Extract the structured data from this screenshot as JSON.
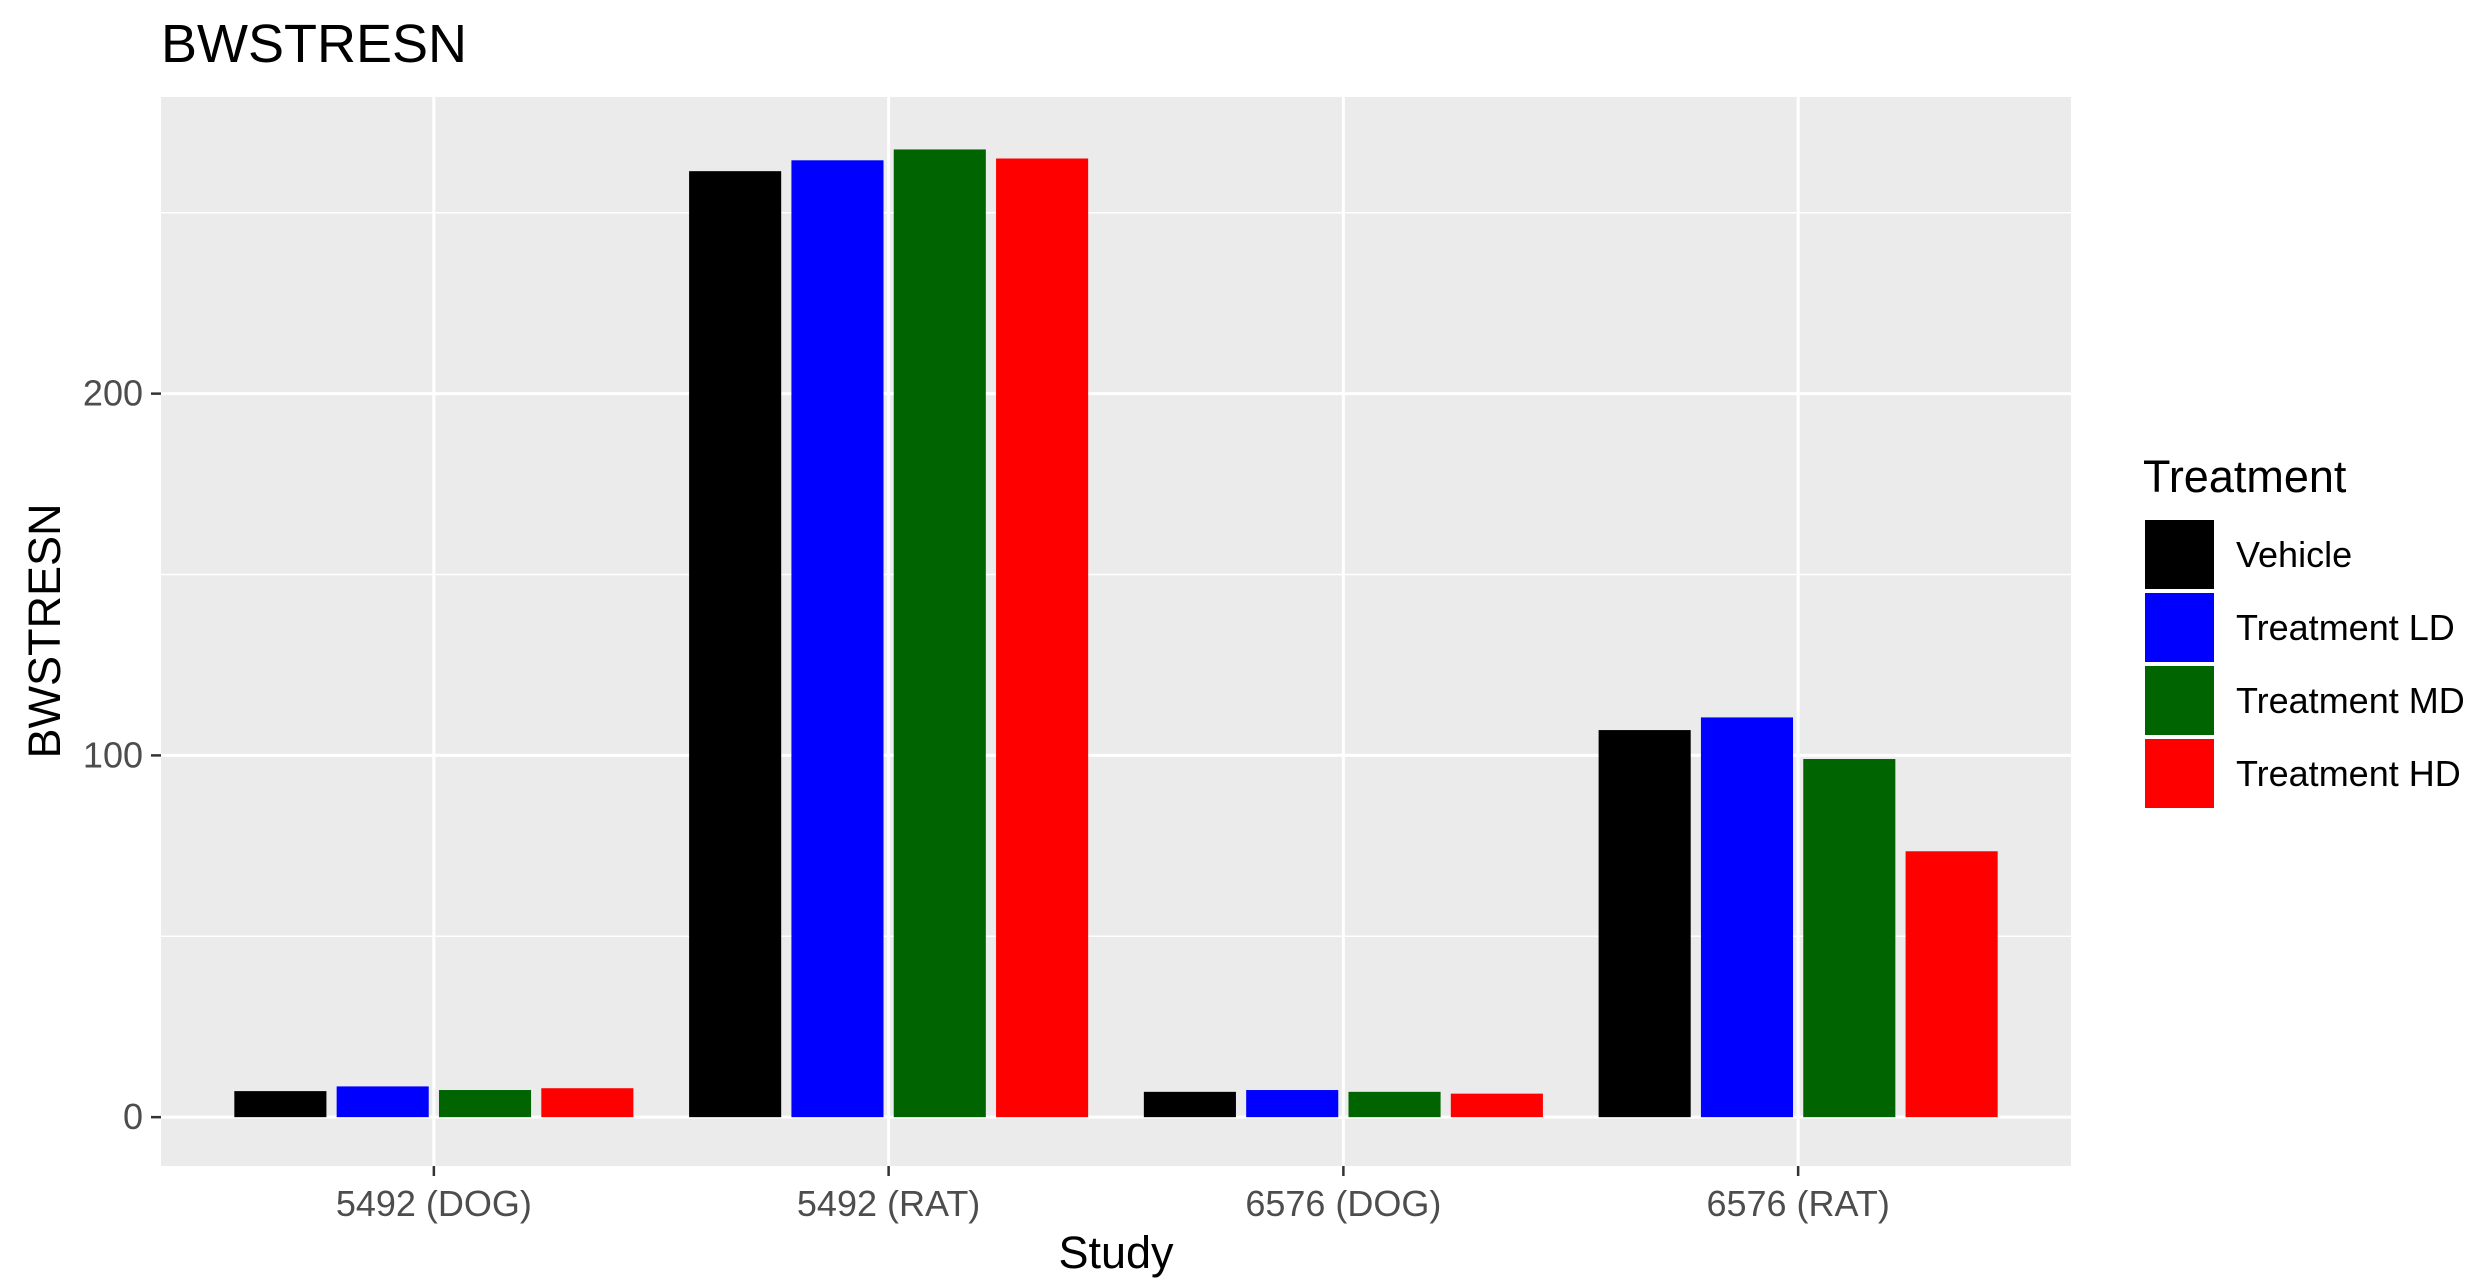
{
  "chart_data": {
    "type": "bar",
    "title": "BWSTRESN",
    "xlabel": "Study",
    "ylabel": "BWSTRESN",
    "categories": [
      "5492 (DOG)",
      "5492 (RAT)",
      "6576 (DOG)",
      "6576 (RAT)"
    ],
    "ylim": [
      -13.5,
      282
    ],
    "yticks": [
      0,
      100,
      200
    ],
    "grid": true,
    "legend": {
      "title": "Treatment",
      "position": "right"
    },
    "series": [
      {
        "name": "Vehicle",
        "color": "#000000",
        "values": [
          7.2,
          261.5,
          7.0,
          107.0
        ]
      },
      {
        "name": "Treatment LD",
        "color": "#0000ff",
        "values": [
          8.5,
          264.5,
          7.5,
          110.5
        ]
      },
      {
        "name": "Treatment MD",
        "color": "#006400",
        "values": [
          7.5,
          267.5,
          7.0,
          99.0
        ]
      },
      {
        "name": "Treatment HD",
        "color": "#ff0000",
        "values": [
          8.0,
          265.0,
          6.5,
          73.5
        ]
      }
    ]
  }
}
